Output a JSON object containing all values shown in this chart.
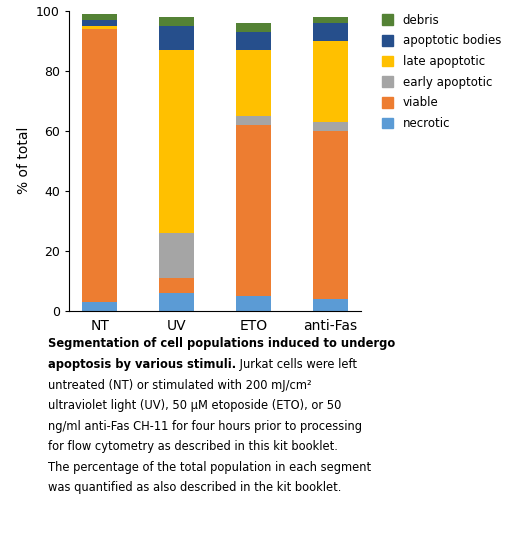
{
  "categories": [
    "NT",
    "UV",
    "ETO",
    "anti-Fas"
  ],
  "segments_order": [
    "necrotic",
    "viable",
    "early apoptotic",
    "late apoptotic",
    "apoptotic bodies",
    "debris"
  ],
  "segments": {
    "necrotic": [
      3,
      6,
      5,
      4
    ],
    "viable": [
      91,
      5,
      57,
      56
    ],
    "early apoptotic": [
      0,
      15,
      3,
      3
    ],
    "late apoptotic": [
      1,
      61,
      22,
      27
    ],
    "apoptotic bodies": [
      2,
      8,
      6,
      6
    ],
    "debris": [
      2,
      3,
      3,
      2
    ]
  },
  "colors": {
    "necrotic": "#5B9BD5",
    "viable": "#ED7D31",
    "early apoptotic": "#A5A5A5",
    "late apoptotic": "#FFC000",
    "apoptotic bodies": "#264F8C",
    "debris": "#548235"
  },
  "legend_order": [
    "debris",
    "apoptotic bodies",
    "late apoptotic",
    "early apoptotic",
    "viable",
    "necrotic"
  ],
  "ylabel": "% of total",
  "ylim": [
    0,
    100
  ],
  "yticks": [
    0,
    20,
    40,
    60,
    80,
    100
  ],
  "bar_width": 0.45,
  "caption_bold": "Segmentation of cell populations induced to undergo apoptosis by various stimuli.",
  "caption_normal": " Jurkat cells were left untreated (NT) or stimulated with 200 mJ/cm² ultraviolet light (UV), 50 μM etoposide (ETO), or 50 ng/ml anti-Fas CH-11 for four hours prior to processing for flow cytometry as described in this kit booklet. The percentage of the total population in each segment was quantified as also described in the kit booklet.",
  "fig_width": 5.31,
  "fig_height": 5.4,
  "dpi": 100
}
